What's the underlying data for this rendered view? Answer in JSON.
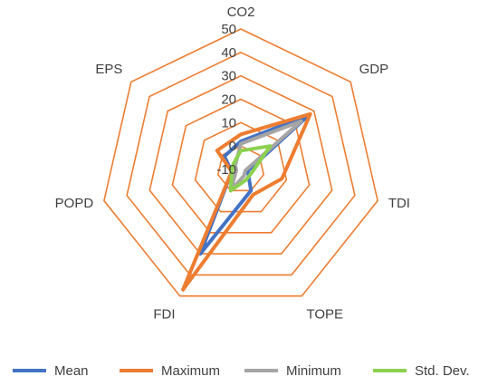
{
  "chart_data": {
    "type": "radar",
    "axes": [
      "CO2",
      "GDP",
      "TDI",
      "TOPE",
      "FDI",
      "POPD",
      "EPS"
    ],
    "rlim": [
      -10,
      50
    ],
    "ticks": [
      "-10",
      "0",
      "10",
      "20",
      "30",
      "40",
      "50"
    ],
    "tick_values": [
      -10,
      0,
      10,
      20,
      30,
      40,
      50
    ],
    "legend_position": "bottom",
    "series": [
      {
        "name": "Mean",
        "color": "#4472C4",
        "values": [
          2,
          27,
          -7,
          0,
          30,
          -6,
          -1
        ]
      },
      {
        "name": "Maximum",
        "color": "#ED7D31",
        "values": [
          5,
          28,
          8,
          2,
          47,
          -6,
          3
        ]
      },
      {
        "name": "Minimum",
        "color": "#A5A5A5",
        "values": [
          1,
          23,
          -8,
          -7,
          0,
          -8,
          -7
        ]
      },
      {
        "name": "Std. Dev.",
        "color": "#8CD14F",
        "values": [
          -2,
          6,
          -5,
          -5,
          0,
          -6,
          -6
        ]
      }
    ],
    "grid_color": "#ED7D31"
  }
}
